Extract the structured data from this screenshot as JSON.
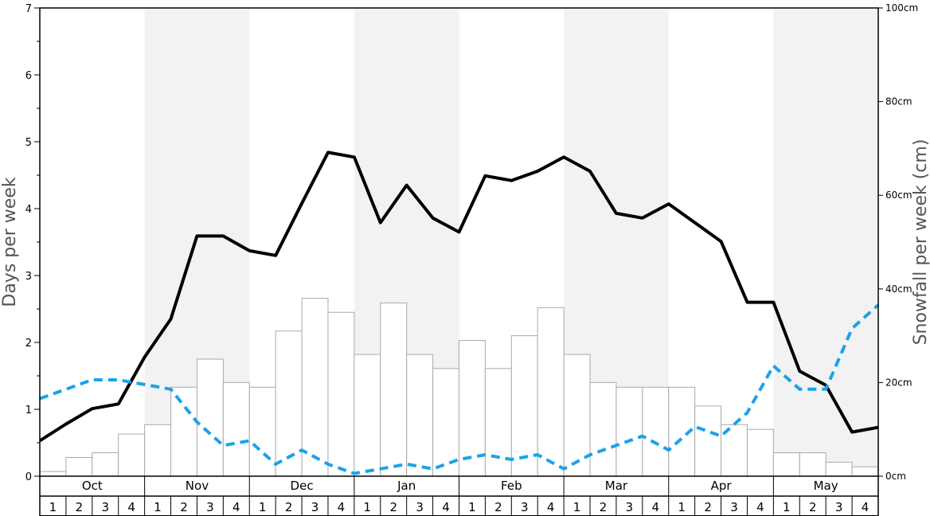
{
  "chart_data": {
    "type": "bar+line",
    "months": [
      "Oct",
      "Nov",
      "Dec",
      "Jan",
      "Feb",
      "Mar",
      "Apr",
      "May"
    ],
    "weeks": [
      "1",
      "2",
      "3",
      "4"
    ],
    "y_left": {
      "label": "Days per week",
      "lim": [
        0,
        7
      ],
      "ticks": [
        "0",
        "1",
        "2",
        "3",
        "4",
        "5",
        "6",
        "7"
      ]
    },
    "y_right": {
      "label": "Snowfall per week (cm)",
      "lim": [
        0,
        100
      ],
      "ticks": [
        "0cm",
        "20cm",
        "40cm",
        "60cm",
        "80cm",
        "100cm"
      ]
    },
    "series": [
      {
        "kind": "bar",
        "axis": "right",
        "values": [
          1,
          4,
          5,
          9,
          11,
          19,
          25,
          20,
          19,
          31,
          38,
          35,
          26,
          37,
          26,
          23,
          29,
          23,
          30,
          36,
          26,
          20,
          19,
          19,
          19,
          15,
          11,
          10,
          5,
          5,
          3,
          2
        ]
      },
      {
        "kind": "line",
        "style": "solid",
        "color": "#000000",
        "axis": "left",
        "values": [
          0.53,
          0.78,
          1.01,
          1.08,
          1.78,
          2.35,
          3.59,
          3.59,
          3.37,
          3.3,
          4.08,
          4.84,
          4.77,
          3.79,
          4.35,
          3.86,
          3.65,
          4.49,
          4.42,
          4.56,
          4.77,
          4.56,
          3.93,
          3.86,
          4.07,
          3.79,
          3.51,
          2.6,
          2.6,
          1.57,
          1.36,
          0.66,
          0.73
        ]
      },
      {
        "kind": "line",
        "style": "dashed",
        "color": "#1aa3e8",
        "axis": "left",
        "values": [
          1.16,
          1.3,
          1.44,
          1.44,
          1.37,
          1.3,
          0.81,
          0.46,
          0.53,
          0.18,
          0.39,
          0.18,
          0.04,
          0.11,
          0.18,
          0.11,
          0.25,
          0.32,
          0.25,
          0.32,
          0.11,
          0.32,
          0.46,
          0.6,
          0.39,
          0.74,
          0.6,
          0.95,
          1.65,
          1.3,
          1.3,
          2.21,
          2.56
        ]
      }
    ]
  }
}
